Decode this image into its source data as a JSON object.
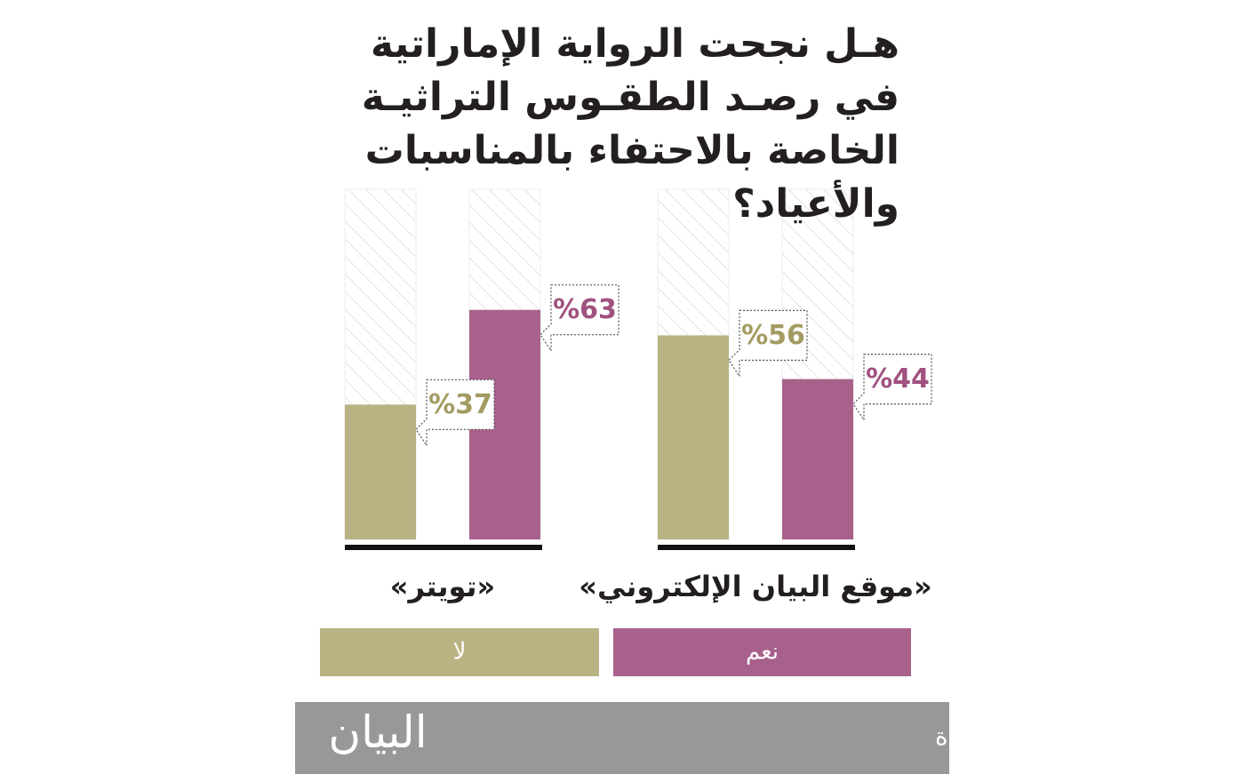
{
  "chart_data": {
    "type": "bar",
    "title": "هـل نجحت الرواية الإماراتية في رصـد الطقـوس التراثيـة الخاصة بالاحتفاء بالمناسبات والأعياد؟",
    "categories": [
      "«موقع البيان الإلكتروني»",
      "«تويتر»"
    ],
    "series": [
      {
        "name": "نعم",
        "color": "#a8618b",
        "label_color": "#a0527f",
        "values": [
          44,
          63
        ],
        "value_labels": [
          "%44",
          "%63"
        ]
      },
      {
        "name": "لا",
        "color": "#b9b282",
        "label_color": "#a39b62",
        "values": [
          56,
          37
        ],
        "value_labels": [
          "%56",
          "%37"
        ]
      }
    ],
    "ylim": [
      0,
      100
    ]
  },
  "credit": "غرافيك: محمد أبوعبيدة",
  "brand": "البيان"
}
